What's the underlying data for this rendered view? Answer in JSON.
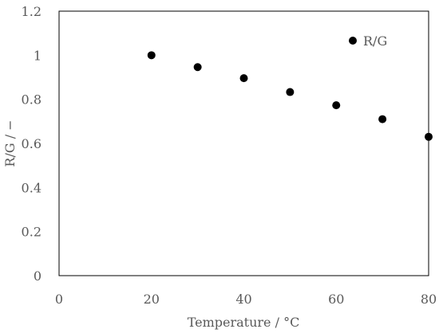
{
  "chart_data": {
    "type": "scatter",
    "xlabel": "Temperature / °C",
    "ylabel": "R/G /  −",
    "xlim": [
      0,
      80
    ],
    "ylim": [
      0,
      1.2
    ],
    "xticks": [
      "0",
      "20",
      "40",
      "60",
      "80"
    ],
    "yticks": [
      "0",
      "0.2",
      "0.4",
      "0.6",
      "0.8",
      "1",
      "1.2"
    ],
    "grid": false,
    "legend_position": "top-right",
    "marker_color": "#000000",
    "series": [
      {
        "name": "R/G",
        "x": [
          20,
          30,
          40,
          50,
          60,
          70,
          80
        ],
        "y": [
          1.0,
          0.946,
          0.896,
          0.833,
          0.773,
          0.71,
          0.63
        ]
      }
    ]
  }
}
